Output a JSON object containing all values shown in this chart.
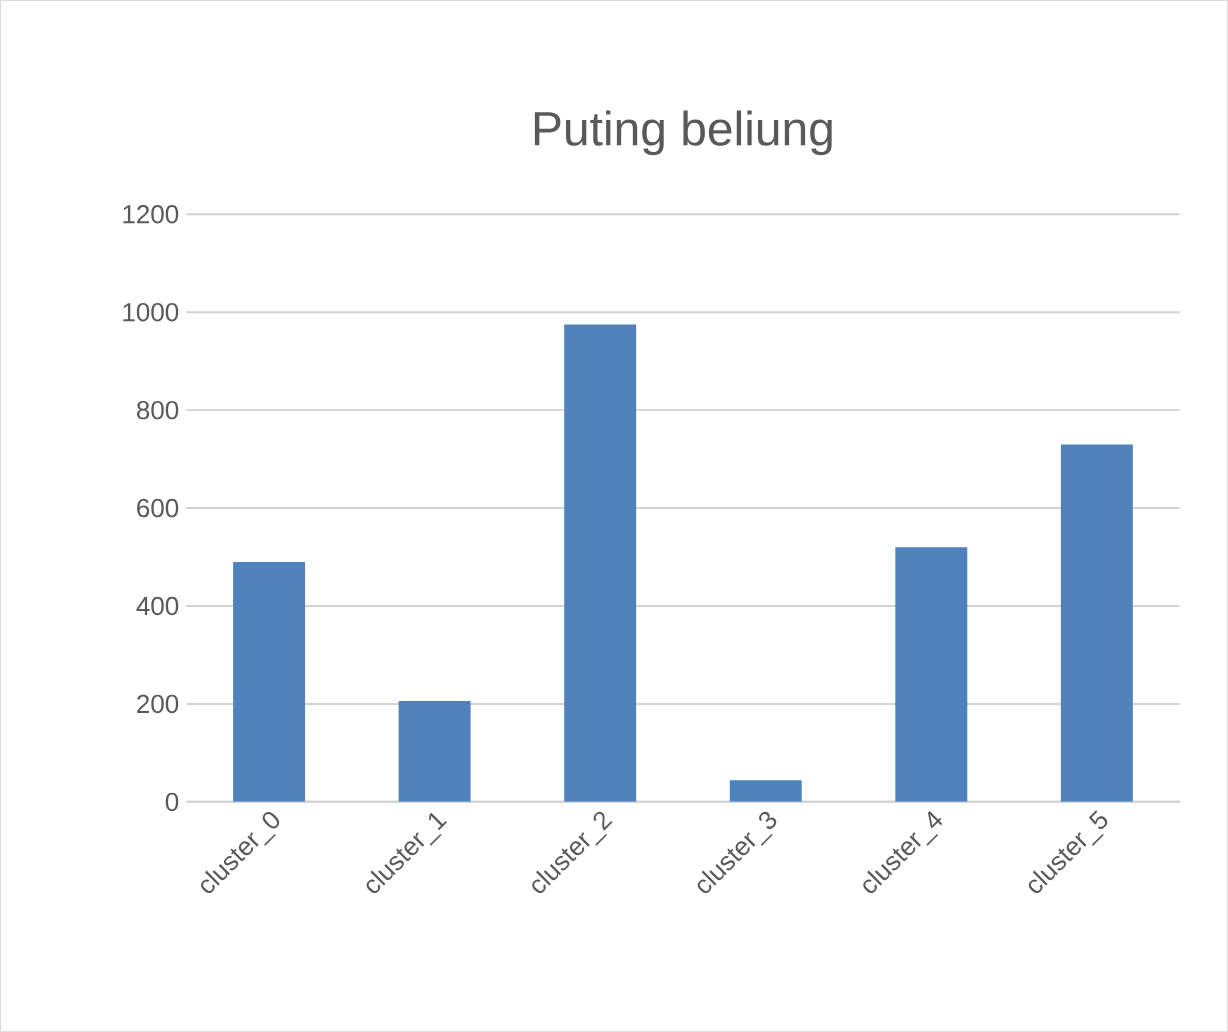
{
  "chart_data": {
    "type": "bar",
    "title": "Puting beliung",
    "categories": [
      "cluster_0",
      "cluster_1",
      "cluster_2",
      "cluster_3",
      "cluster_4",
      "cluster_5"
    ],
    "values": [
      490,
      206,
      975,
      44,
      520,
      730
    ],
    "color": "#4f81bd",
    "ylim": [
      0,
      1200
    ],
    "yticks": [
      0,
      200,
      400,
      600,
      800,
      1000,
      1200
    ],
    "grid": "y"
  }
}
